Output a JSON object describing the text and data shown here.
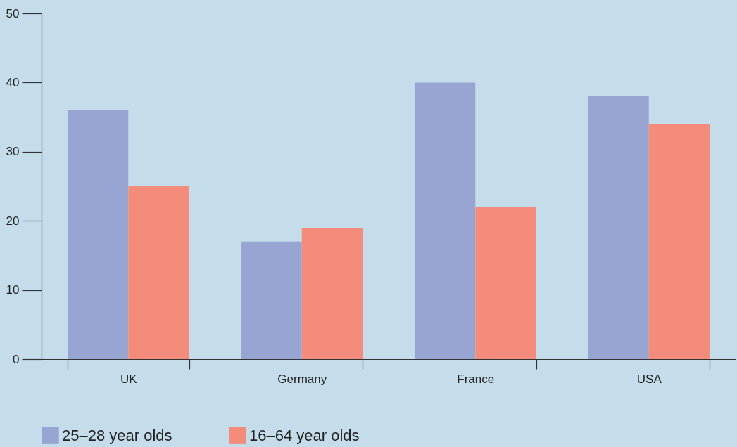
{
  "chart_data": {
    "type": "bar",
    "categories": [
      "UK",
      "Germany",
      "France",
      "USA"
    ],
    "series": [
      {
        "name": "25–28 year olds",
        "color": "#98a4d1",
        "values": [
          36,
          17,
          40,
          38
        ]
      },
      {
        "name": "16–64 year olds",
        "color": "#f48c7b",
        "values": [
          25,
          19,
          22,
          34
        ]
      }
    ],
    "ylim": [
      0,
      50
    ],
    "yticks": [
      0,
      10,
      20,
      30,
      40,
      50
    ],
    "grid": false,
    "legend": "bottom left"
  }
}
